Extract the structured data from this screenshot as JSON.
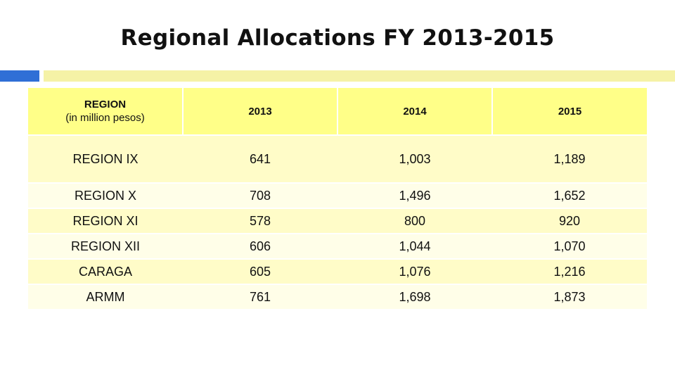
{
  "title": "Regional Allocations FY 2013-2015",
  "table": {
    "headers": {
      "region": "REGION",
      "region_note": "(in million pesos)",
      "y2013": "2013",
      "y2014": "2014",
      "y2015": "2015"
    },
    "rows": [
      {
        "region": "REGION IX",
        "y2013": "641",
        "y2014": "1,003",
        "y2015": "1,189"
      },
      {
        "region": "REGION X",
        "y2013": "708",
        "y2014": "1,496",
        "y2015": "1,652"
      },
      {
        "region": "REGION XI",
        "y2013": "578",
        "y2014": "800",
        "y2015": "920"
      },
      {
        "region": "REGION XII",
        "y2013": "606",
        "y2014": "1,044",
        "y2015": "1,070"
      },
      {
        "region": "CARAGA",
        "y2013": "605",
        "y2014": "1,076",
        "y2015": "1,216"
      },
      {
        "region": "ARMM",
        "y2013": "761",
        "y2014": "1,698",
        "y2015": "1,873"
      }
    ]
  },
  "colors": {
    "accent_blue": "#2f6fd6",
    "accent_bar": "#f5f2a6",
    "header_fill": "#ffff88",
    "row_fill_dark": "#fffcc8",
    "row_fill_light": "#fffee8"
  }
}
